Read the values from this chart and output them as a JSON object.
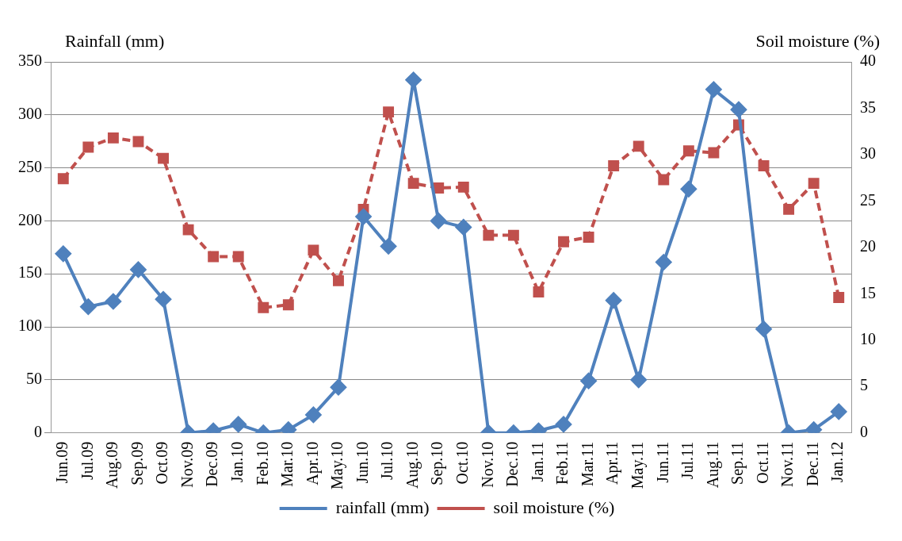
{
  "chart_data": {
    "type": "line",
    "ylabel": "Rainfall (mm)",
    "y2label": "Soil moisture (%)",
    "categories": [
      "Jun.09",
      "Jul.09",
      "Aug.09",
      "Sep.09",
      "Oct.09",
      "Nov.09",
      "Dec.09",
      "Jan.10",
      "Feb.10",
      "Mar.10",
      "Apr.10",
      "May.10",
      "Jun.10",
      "Jul.10",
      "Aug.10",
      "Sep.10",
      "Oct.10",
      "Nov.10",
      "Dec.10",
      "Jan.11",
      "Feb.11",
      "Mar.11",
      "Apr.11",
      "May.11",
      "Jun.11",
      "Jul.11",
      "Aug.11",
      "Sep.11",
      "Oct.11",
      "Nov.11",
      "Dec.11",
      "Jan.12"
    ],
    "series": [
      {
        "name": "rainfall (mm)",
        "color": "#4f81bd",
        "marker": "diamond",
        "line_style": "solid",
        "values": [
          169,
          119,
          124,
          154,
          126,
          0,
          2,
          8,
          0,
          3,
          17,
          43,
          204,
          176,
          333,
          200,
          194,
          0,
          0,
          2,
          8,
          49,
          125,
          50,
          161,
          230,
          324,
          305,
          98,
          0,
          3,
          20
        ]
      },
      {
        "name": "soil moisture (%)",
        "color": "#c0504d",
        "marker": "square",
        "line_style": "dashed",
        "axis": "y2",
        "values": [
          27.4,
          30.8,
          31.8,
          31.4,
          29.6,
          21.9,
          19.0,
          19.0,
          13.5,
          13.8,
          19.7,
          16.4,
          24.1,
          34.6,
          26.9,
          26.4,
          26.5,
          21.3,
          21.3,
          15.2,
          20.6,
          21.1,
          28.8,
          30.9,
          27.3,
          30.4,
          30.2,
          33.2,
          28.8,
          24.1,
          26.9,
          14.6
        ]
      }
    ],
    "ylim": [
      0,
      350
    ],
    "yticks": [
      0,
      50,
      100,
      150,
      200,
      250,
      300,
      350
    ],
    "y2lim": [
      0,
      40
    ],
    "y2ticks": [
      0,
      5,
      10,
      15,
      20,
      25,
      30,
      35,
      40
    ],
    "grid": "y",
    "legend": "bottom"
  }
}
